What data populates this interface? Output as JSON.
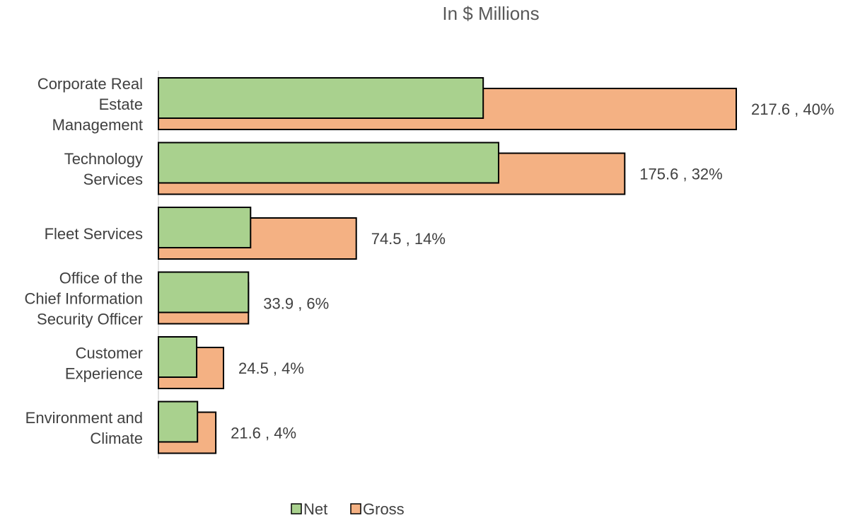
{
  "chart_data": {
    "type": "bar",
    "orientation": "horizontal",
    "title": "In $ Millions",
    "categories": [
      [
        "Corporate Real",
        "Estate",
        "Management"
      ],
      [
        "Technology",
        "Services"
      ],
      [
        "Fleet Services"
      ],
      [
        "Office of the",
        "Chief Information",
        "Security Officer"
      ],
      [
        "Customer",
        "Experience"
      ],
      [
        "Environment and",
        "Climate"
      ]
    ],
    "series": [
      {
        "name": "Net",
        "values": [
          122.3,
          128.1,
          34.7,
          33.9,
          14.4,
          14.7
        ],
        "color": "#a9d18e"
      },
      {
        "name": "Gross",
        "values": [
          217.6,
          175.6,
          74.5,
          33.9,
          24.5,
          21.6
        ],
        "color": "#f4b183"
      }
    ],
    "data_labels": [
      "217.6 , 40%",
      "175.6 , 32%",
      "74.5 , 14%",
      "33.9 , 6%",
      "24.5 , 4%",
      "21.6 , 4%"
    ],
    "xlim": [
      0,
      217.6
    ],
    "grid": false,
    "legend_position": "bottom"
  }
}
